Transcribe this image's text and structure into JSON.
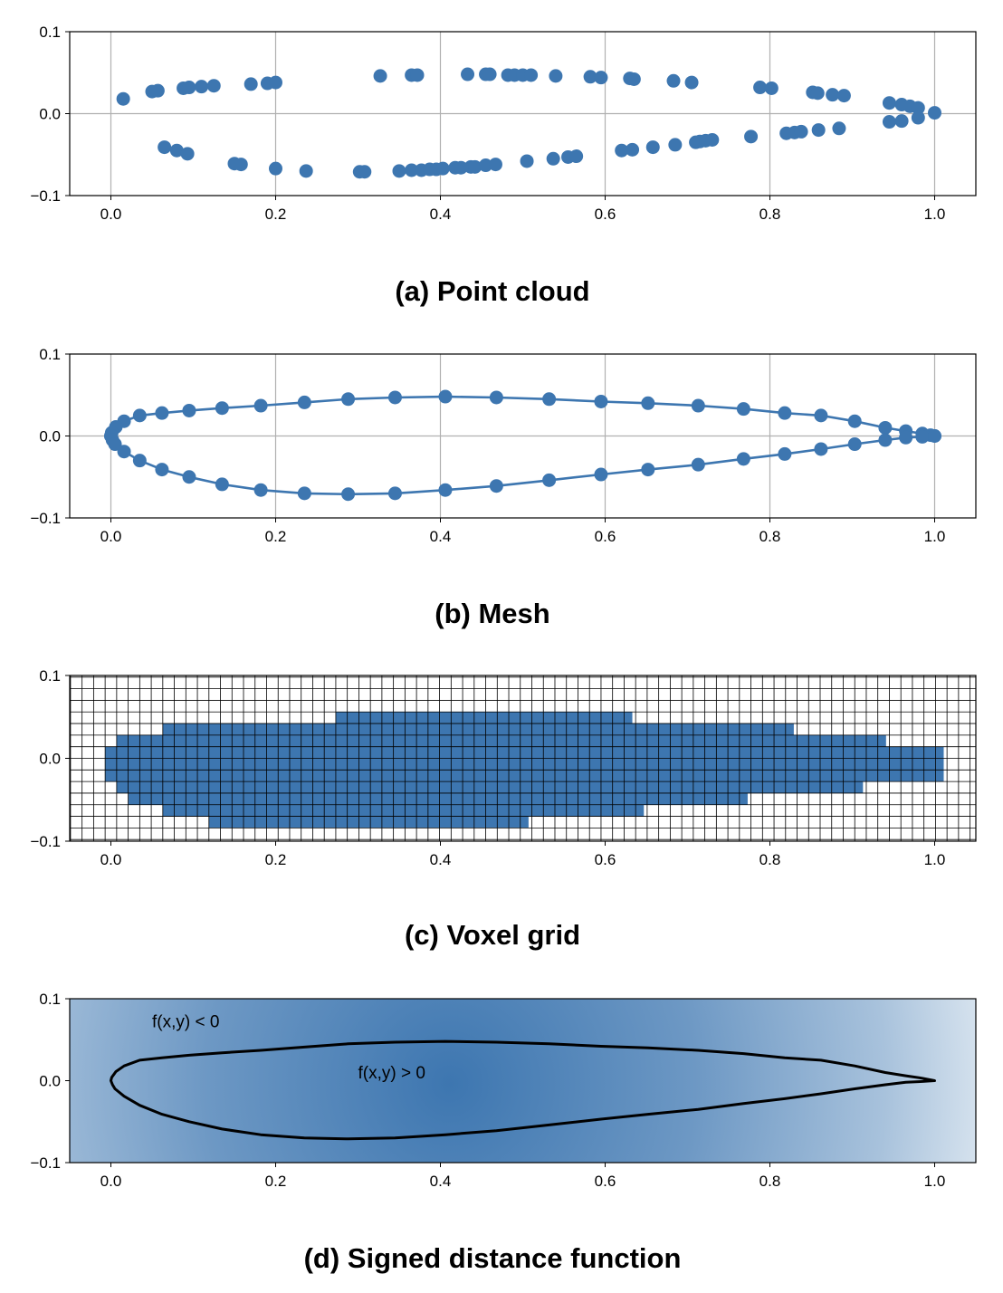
{
  "chart_data": [
    {
      "type": "scatter",
      "caption": "(a) Point cloud",
      "xlim": [
        -0.05,
        1.05
      ],
      "ylim": [
        -0.1,
        0.1
      ],
      "xticks": [
        "0.0",
        "0.2",
        "0.4",
        "0.6",
        "0.8",
        "1.0"
      ],
      "yticks": [
        "0.1",
        "0.0",
        "−0.1"
      ],
      "grid": true,
      "color": "#3d76b0",
      "upper": [
        [
          0.015,
          0.018
        ],
        [
          0.05,
          0.027
        ],
        [
          0.057,
          0.028
        ],
        [
          0.088,
          0.031
        ],
        [
          0.095,
          0.032
        ],
        [
          0.11,
          0.033
        ],
        [
          0.125,
          0.034
        ],
        [
          0.17,
          0.036
        ],
        [
          0.19,
          0.037
        ],
        [
          0.2,
          0.038
        ],
        [
          0.327,
          0.046
        ],
        [
          0.365,
          0.047
        ],
        [
          0.372,
          0.047
        ],
        [
          0.433,
          0.048
        ],
        [
          0.455,
          0.048
        ],
        [
          0.46,
          0.048
        ],
        [
          0.482,
          0.047
        ],
        [
          0.49,
          0.047
        ],
        [
          0.5,
          0.047
        ],
        [
          0.51,
          0.047
        ],
        [
          0.54,
          0.046
        ],
        [
          0.582,
          0.045
        ],
        [
          0.595,
          0.044
        ],
        [
          0.63,
          0.043
        ],
        [
          0.635,
          0.042
        ],
        [
          0.683,
          0.04
        ],
        [
          0.705,
          0.038
        ],
        [
          0.788,
          0.032
        ],
        [
          0.802,
          0.031
        ],
        [
          0.852,
          0.026
        ],
        [
          0.858,
          0.025
        ],
        [
          0.876,
          0.023
        ],
        [
          0.89,
          0.022
        ],
        [
          0.945,
          0.013
        ],
        [
          0.96,
          0.011
        ],
        [
          0.97,
          0.009
        ],
        [
          0.98,
          0.007
        ],
        [
          1.0,
          0.001
        ]
      ],
      "lower": [
        [
          0.065,
          -0.041
        ],
        [
          0.08,
          -0.045
        ],
        [
          0.093,
          -0.049
        ],
        [
          0.15,
          -0.061
        ],
        [
          0.158,
          -0.062
        ],
        [
          0.2,
          -0.067
        ],
        [
          0.237,
          -0.07
        ],
        [
          0.302,
          -0.071
        ],
        [
          0.308,
          -0.071
        ],
        [
          0.35,
          -0.07
        ],
        [
          0.365,
          -0.069
        ],
        [
          0.377,
          -0.069
        ],
        [
          0.387,
          -0.068
        ],
        [
          0.395,
          -0.068
        ],
        [
          0.403,
          -0.067
        ],
        [
          0.418,
          -0.066
        ],
        [
          0.425,
          -0.066
        ],
        [
          0.437,
          -0.065
        ],
        [
          0.442,
          -0.065
        ],
        [
          0.455,
          -0.063
        ],
        [
          0.467,
          -0.062
        ],
        [
          0.505,
          -0.058
        ],
        [
          0.537,
          -0.055
        ],
        [
          0.555,
          -0.053
        ],
        [
          0.565,
          -0.052
        ],
        [
          0.62,
          -0.045
        ],
        [
          0.633,
          -0.044
        ],
        [
          0.658,
          -0.041
        ],
        [
          0.685,
          -0.038
        ],
        [
          0.71,
          -0.035
        ],
        [
          0.715,
          -0.034
        ],
        [
          0.722,
          -0.033
        ],
        [
          0.73,
          -0.032
        ],
        [
          0.777,
          -0.028
        ],
        [
          0.82,
          -0.024
        ],
        [
          0.83,
          -0.023
        ],
        [
          0.838,
          -0.022
        ],
        [
          0.859,
          -0.02
        ],
        [
          0.884,
          -0.018
        ],
        [
          0.945,
          -0.01
        ],
        [
          0.96,
          -0.009
        ],
        [
          0.98,
          -0.005
        ]
      ]
    },
    {
      "type": "line",
      "caption": "(b) Mesh",
      "xlim": [
        -0.05,
        1.05
      ],
      "ylim": [
        -0.1,
        0.1
      ],
      "xticks": [
        "0.0",
        "0.2",
        "0.4",
        "0.6",
        "0.8",
        "1.0"
      ],
      "yticks": [
        "0.1",
        "0.0",
        "−0.1"
      ],
      "grid": true,
      "color": "#3d76b0",
      "upper": [
        [
          1.0,
          0.0
        ],
        [
          0.995,
          0.001
        ],
        [
          0.985,
          0.003
        ],
        [
          0.965,
          0.006
        ],
        [
          0.94,
          0.01
        ],
        [
          0.903,
          0.018
        ],
        [
          0.862,
          0.025
        ],
        [
          0.818,
          0.028
        ],
        [
          0.768,
          0.033
        ],
        [
          0.713,
          0.037
        ],
        [
          0.652,
          0.04
        ],
        [
          0.595,
          0.042
        ],
        [
          0.532,
          0.045
        ],
        [
          0.468,
          0.047
        ],
        [
          0.406,
          0.048
        ],
        [
          0.345,
          0.047
        ],
        [
          0.288,
          0.045
        ],
        [
          0.235,
          0.041
        ],
        [
          0.182,
          0.037
        ],
        [
          0.135,
          0.034
        ],
        [
          0.095,
          0.031
        ],
        [
          0.062,
          0.028
        ],
        [
          0.035,
          0.025
        ],
        [
          0.016,
          0.018
        ],
        [
          0.006,
          0.011
        ],
        [
          0.001,
          0.004
        ],
        [
          0.0,
          0.0
        ]
      ],
      "lower": [
        [
          0.0,
          0.0
        ],
        [
          0.002,
          -0.005
        ],
        [
          0.005,
          -0.01
        ],
        [
          0.016,
          -0.019
        ],
        [
          0.035,
          -0.03
        ],
        [
          0.062,
          -0.041
        ],
        [
          0.095,
          -0.05
        ],
        [
          0.135,
          -0.059
        ],
        [
          0.182,
          -0.066
        ],
        [
          0.235,
          -0.07
        ],
        [
          0.288,
          -0.071
        ],
        [
          0.345,
          -0.07
        ],
        [
          0.406,
          -0.066
        ],
        [
          0.468,
          -0.061
        ],
        [
          0.532,
          -0.054
        ],
        [
          0.595,
          -0.047
        ],
        [
          0.652,
          -0.041
        ],
        [
          0.713,
          -0.035
        ],
        [
          0.768,
          -0.028
        ],
        [
          0.818,
          -0.022
        ],
        [
          0.862,
          -0.016
        ],
        [
          0.903,
          -0.01
        ],
        [
          0.94,
          -0.005
        ],
        [
          0.965,
          -0.002
        ],
        [
          0.985,
          -0.001
        ],
        [
          1.0,
          0.0
        ]
      ]
    },
    {
      "type": "heatmap",
      "caption": "(c) Voxel grid",
      "xlim": [
        -0.05,
        1.05
      ],
      "ylim": [
        -0.1,
        0.1
      ],
      "xticks": [
        "0.0",
        "0.2",
        "0.4",
        "0.6",
        "0.8",
        "1.0"
      ],
      "yticks": [
        "0.1",
        "0.0",
        "−0.1"
      ],
      "cell_size": 0.014,
      "fill_color": "#3d76b0",
      "voxel_bands": [
        {
          "y": [
            -0.084,
            -0.07
          ],
          "x": [
            0.119,
            0.507
          ]
        },
        {
          "y": [
            -0.07,
            -0.056
          ],
          "x": [
            0.063,
            0.647
          ]
        },
        {
          "y": [
            -0.056,
            -0.042
          ],
          "x": [
            0.021,
            0.773
          ]
        },
        {
          "y": [
            -0.042,
            -0.028
          ],
          "x": [
            0.007,
            0.913
          ]
        },
        {
          "y": [
            -0.028,
            -0.014
          ],
          "x": [
            -0.007,
            1.011
          ]
        },
        {
          "y": [
            -0.014,
            0.0
          ],
          "x": [
            -0.007,
            1.011
          ]
        },
        {
          "y": [
            0.0,
            0.014
          ],
          "x": [
            -0.007,
            1.011
          ]
        },
        {
          "y": [
            0.014,
            0.028
          ],
          "x": [
            0.007,
            0.941
          ]
        },
        {
          "y": [
            0.028,
            0.042
          ],
          "x": [
            0.063,
            0.829
          ]
        },
        {
          "y": [
            0.042,
            0.056
          ],
          "x": [
            0.273,
            0.633
          ]
        }
      ]
    },
    {
      "type": "heatmap",
      "caption": "(d) Signed distance function",
      "xlim": [
        -0.05,
        1.05
      ],
      "ylim": [
        -0.1,
        0.1
      ],
      "xticks": [
        "0.0",
        "0.2",
        "0.4",
        "0.6",
        "0.8",
        "1.0"
      ],
      "yticks": [
        "0.1",
        "0.0",
        "−0.1"
      ],
      "colormap": [
        "#dbe6f0",
        "#3d76b0"
      ],
      "annotations": [
        {
          "text": "f(x,y) < 0",
          "x": 0.05,
          "y": 0.065
        },
        {
          "text": "f(x,y) > 0",
          "x": 0.3,
          "y": 0.003
        }
      ]
    }
  ]
}
